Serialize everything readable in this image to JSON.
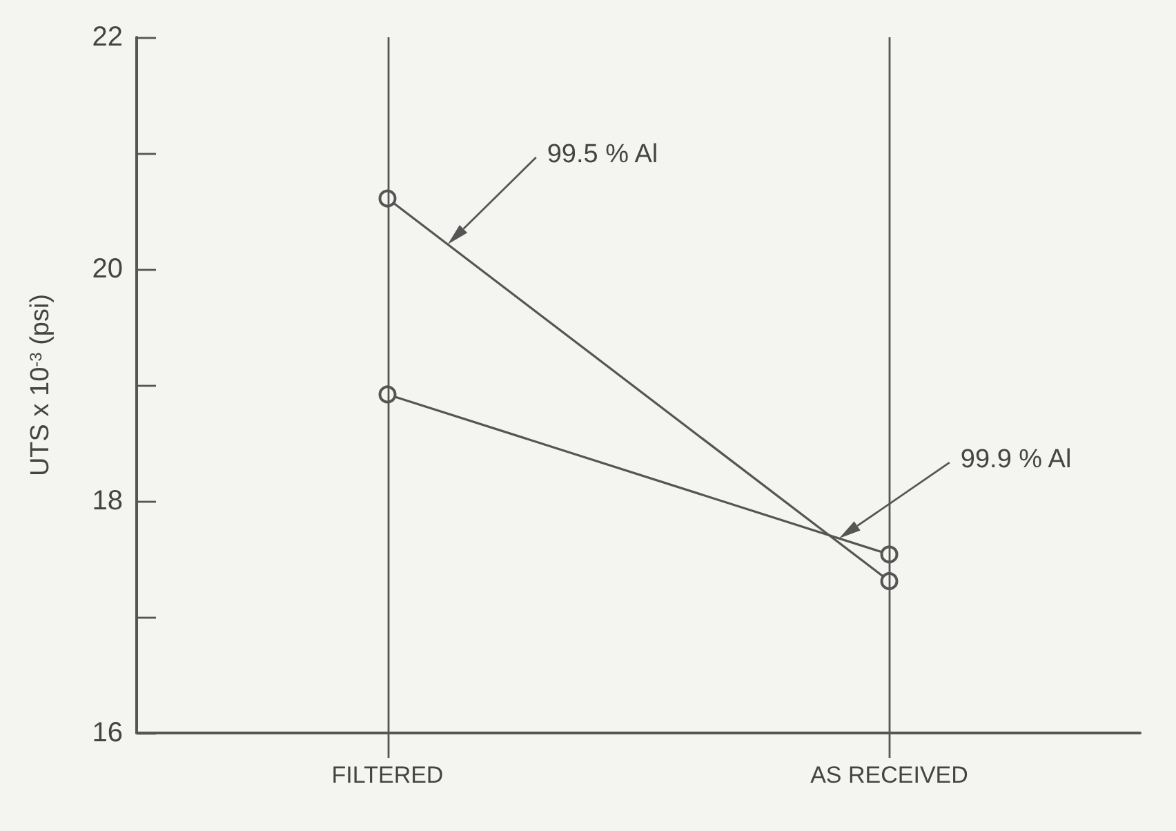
{
  "chart_data": {
    "type": "line",
    "ylabel": "UTS x 10$^{-3}$ (psi)",
    "categories": [
      "FILTERED",
      "AS RECEIVED"
    ],
    "ylim": [
      16,
      22
    ],
    "yticks": [
      16,
      {
        "value": 17,
        "label": null
      },
      18,
      {
        "value": 19,
        "label": null
      },
      20,
      {
        "value": 21,
        "label": null
      },
      22
    ],
    "grid": false,
    "legend": false,
    "marker": "circle",
    "line_style": "solid",
    "ref_lines": [
      {
        "axis": "x",
        "value": "FILTERED",
        "color": "#555555"
      },
      {
        "axis": "x",
        "value": "AS RECEIVED",
        "color": "#555555"
      }
    ],
    "series": [
      {
        "name": "99.5 % Al",
        "color": "#555555",
        "values": [
          20.61,
          17.31
        ]
      },
      {
        "name": "99.9 % Al",
        "color": "#555555",
        "values": [
          18.92,
          17.54
        ]
      }
    ]
  }
}
